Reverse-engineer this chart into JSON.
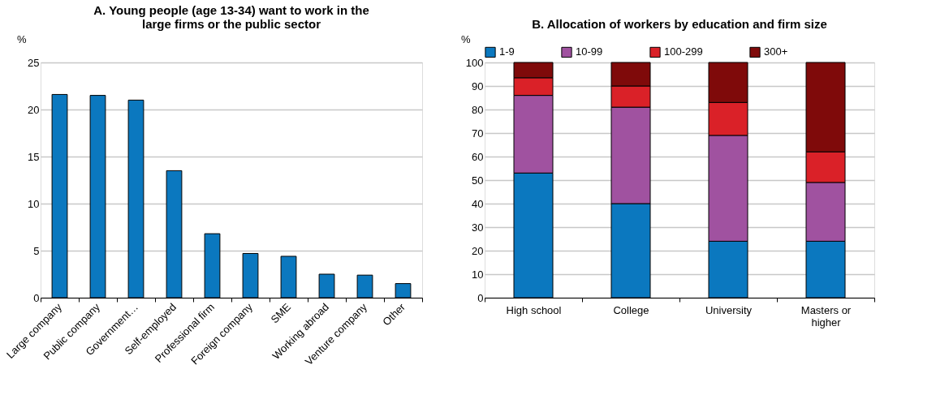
{
  "chart_data": [
    {
      "type": "bar",
      "title": "A. Young people (age 13-34) want to work in the large firms or the public sector",
      "ylabel": "%",
      "categories": [
        "Large company",
        "Public company",
        "Government…",
        "Self-employed",
        "Professional firm",
        "Foreign company",
        "SME",
        "Working abroad",
        "Venture company",
        "Other"
      ],
      "values": [
        21.6,
        21.5,
        21.0,
        13.5,
        6.8,
        4.7,
        4.4,
        2.5,
        2.4,
        1.5
      ],
      "color": "#0b78bf",
      "ylim": [
        0,
        25
      ],
      "yticks": [
        0,
        5,
        10,
        15,
        20,
        25
      ],
      "grid": "y"
    },
    {
      "type": "bar",
      "title": "B. Allocation of workers by education and firm size",
      "ylabel": "%",
      "stacked": true,
      "legend": "top",
      "categories": [
        "High school",
        "College",
        "University",
        "Masters or\nhigher"
      ],
      "series": [
        {
          "name": "1-9",
          "color": "#0b78bf",
          "values": [
            53,
            40,
            24,
            24
          ]
        },
        {
          "name": "10-99",
          "color": "#a052a0",
          "values": [
            33,
            41,
            45,
            25
          ]
        },
        {
          "name": "100-299",
          "color": "#da2128",
          "values": [
            7.5,
            9,
            14,
            13
          ]
        },
        {
          "name": "300+",
          "color": "#7f0a0a",
          "values": [
            6.5,
            10,
            17,
            38
          ]
        }
      ],
      "ylim": [
        0,
        100
      ],
      "yticks": [
        0,
        10,
        20,
        30,
        40,
        50,
        60,
        70,
        80,
        90,
        100
      ],
      "grid": "y"
    }
  ]
}
